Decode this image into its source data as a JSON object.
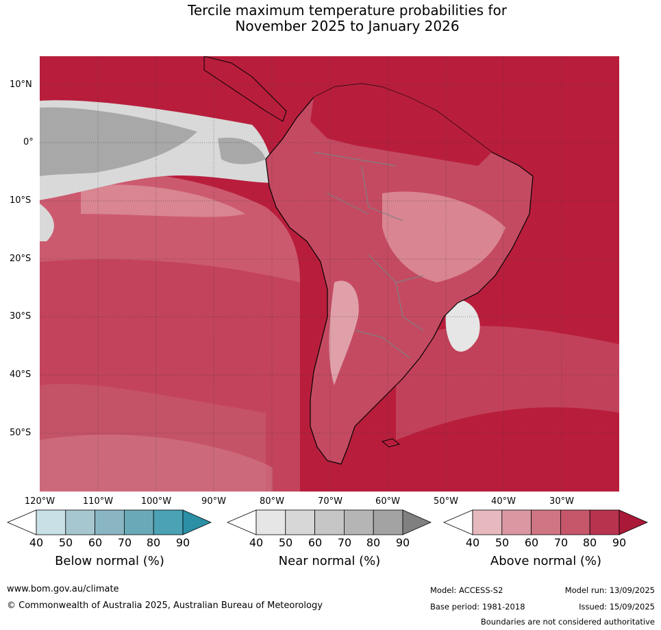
{
  "title": {
    "line1": "Tercile maximum temperature probabilities for",
    "line2": "November 2025 to January 2026"
  },
  "map": {
    "latitude_labels": [
      "10°N",
      "0°",
      "10°S",
      "20°S",
      "30°S",
      "40°S",
      "50°S"
    ],
    "longitude_labels": [
      "120°W",
      "110°W",
      "100°W",
      "90°W",
      "80°W",
      "70°W",
      "60°W",
      "50°W",
      "40°W",
      "30°W"
    ],
    "colors": {
      "above_dominant": "#b81e3c",
      "land_ocean_above_mid": "#c8485e",
      "above_light": "#d98592",
      "near_normal_region": "#a8a8a8",
      "near_light": "#d9d9d9",
      "coastline": "#000000",
      "borders": "#808080"
    }
  },
  "legends": [
    {
      "label": "Below normal (%)",
      "ticks": [
        "40",
        "50",
        "60",
        "70",
        "80",
        "90"
      ],
      "colors": [
        "#ffffff",
        "#c8e0e6",
        "#a6c7cf",
        "#8ab6c3",
        "#6aaab8",
        "#4aa2b4",
        "#2b8fa6"
      ]
    },
    {
      "label": "Near normal (%)",
      "ticks": [
        "40",
        "50",
        "60",
        "70",
        "80",
        "90"
      ],
      "colors": [
        "#ffffff",
        "#e6e6e6",
        "#d7d7d7",
        "#c6c6c6",
        "#b5b5b5",
        "#a3a3a3",
        "#808080"
      ]
    },
    {
      "label": "Above normal (%)",
      "ticks": [
        "40",
        "50",
        "60",
        "70",
        "80",
        "90"
      ],
      "colors": [
        "#ffffff",
        "#e6b9bf",
        "#db98a2",
        "#cf7583",
        "#c6566a",
        "#b8334e",
        "#aa1a38"
      ]
    }
  ],
  "footer": {
    "url": "www.bom.gov.au/climate",
    "copyright": "© Commonwealth of Australia 2025, Australian Bureau of Meteorology",
    "model": "Model: ACCESS-S2",
    "model_run": "Model run: 13/09/2025",
    "base_period": "Base period: 1981-2018",
    "issued": "Issued: 15/09/2025",
    "disclaimer": "Boundaries are not considered authoritative"
  }
}
